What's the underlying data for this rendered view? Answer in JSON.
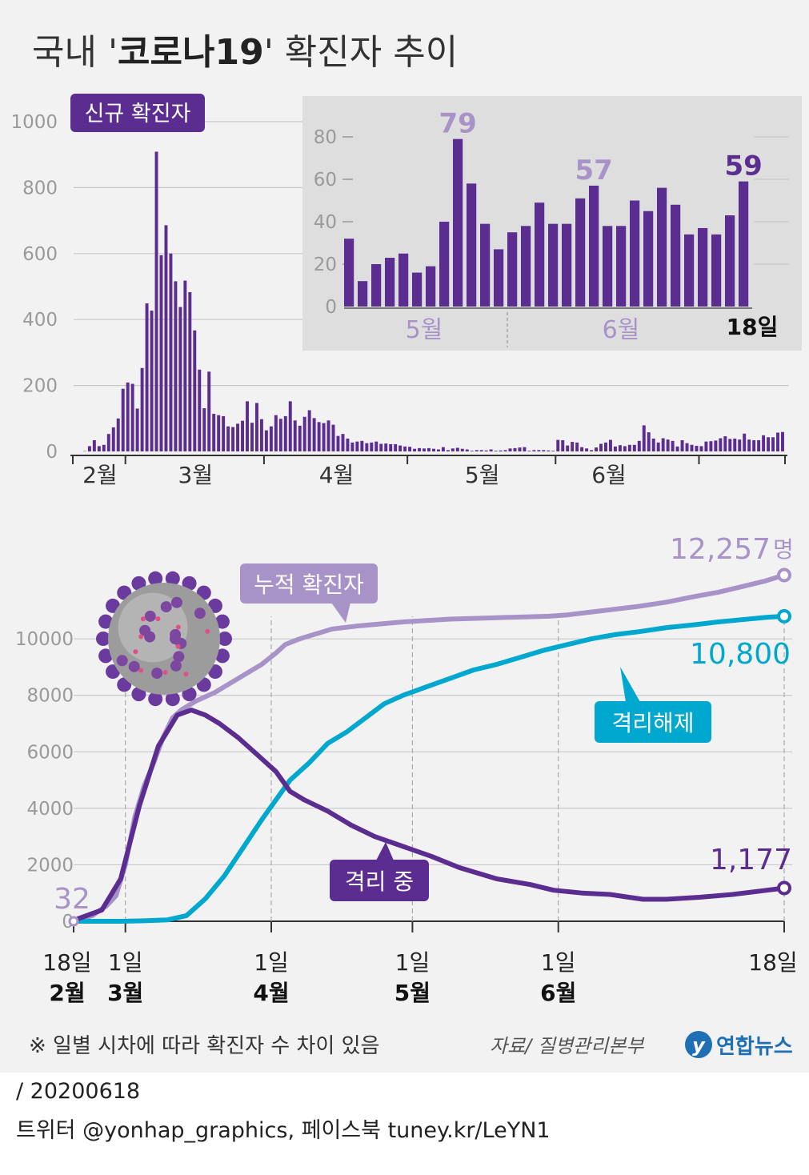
{
  "title": {
    "prefix": "국내 '",
    "bold": "코로나19",
    "suffix": "' 확진자 추이"
  },
  "colors": {
    "purple": "#5c2d91",
    "lavender": "#a893c8",
    "cyan": "#00a8cf",
    "grid": "#c9c9c9",
    "axis_text": "#9a9a9a",
    "inset_bg": "#dedede"
  },
  "chart_data": [
    {
      "type": "bar",
      "label": "신규 확진자",
      "ylim": [
        0,
        1000
      ],
      "yticks": [
        "0",
        "200",
        "400",
        "600",
        "800",
        "1000"
      ],
      "month_labels": [
        "2월",
        "3월",
        "4월",
        "5월",
        "6월"
      ],
      "values": [
        0,
        0,
        1,
        16,
        34,
        16,
        20,
        53,
        73,
        100,
        190,
        209,
        205,
        130,
        253,
        449,
        427,
        909,
        595,
        686,
        600,
        516,
        438,
        518,
        483,
        367,
        248,
        131,
        242,
        114,
        110,
        107,
        76,
        74,
        84,
        93,
        152,
        87,
        147,
        98,
        64,
        76,
        110,
        99,
        107,
        152,
        94,
        78,
        105,
        125,
        101,
        89,
        86,
        94,
        81,
        47,
        53,
        39,
        27,
        30,
        32,
        25,
        27,
        30,
        23,
        24,
        22,
        22,
        18,
        15,
        14,
        8,
        10,
        9,
        10,
        8,
        6,
        13,
        4,
        9,
        11,
        8,
        6,
        2,
        4,
        4,
        3,
        6,
        2,
        3,
        4,
        9,
        10,
        12,
        13,
        2,
        4,
        4,
        4,
        3,
        2,
        35,
        34,
        18,
        29,
        27,
        13,
        9,
        4,
        12,
        23,
        27,
        35,
        15,
        19,
        16,
        20,
        20,
        32,
        79,
        58,
        39,
        27,
        40,
        36,
        32,
        15,
        34,
        25,
        20,
        17,
        16,
        30,
        31,
        33,
        40,
        46,
        38,
        39,
        36,
        54,
        36,
        34,
        34,
        49,
        43,
        43,
        57,
        59
      ]
    },
    {
      "type": "bar",
      "label": "inset",
      "ylim": [
        0,
        80
      ],
      "yticks": [
        "0",
        "20",
        "40",
        "60",
        "80"
      ],
      "month_labels": [
        "5월",
        "6월"
      ],
      "end_label": "18일",
      "values": [
        32,
        12,
        20,
        23,
        25,
        16,
        19,
        40,
        79,
        58,
        39,
        27,
        35,
        38,
        49,
        39,
        39,
        51,
        57,
        38,
        38,
        50,
        45,
        56,
        48,
        34,
        37,
        34,
        43,
        59
      ],
      "annotations": [
        {
          "index": 8,
          "text": "79"
        },
        {
          "index": 18,
          "text": "57"
        },
        {
          "index": 29,
          "text": "59"
        }
      ]
    },
    {
      "type": "line",
      "ylim": [
        0,
        12000
      ],
      "yticks": [
        "0",
        "2000",
        "4000",
        "6000",
        "8000",
        "10000"
      ],
      "x_labels": [
        {
          "day": "18일",
          "month": "2월"
        },
        {
          "day": "1일",
          "month": "3월"
        },
        {
          "day": "1일",
          "month": "4월"
        },
        {
          "day": "1일",
          "month": "5월"
        },
        {
          "day": "1일",
          "month": "6월"
        },
        {
          "day": "18일",
          "month": ""
        }
      ],
      "series": [
        {
          "name": "누적 확진자",
          "color": "#a893c8",
          "start_label": "32",
          "end_label": "12,257",
          "unit": "명",
          "points": [
            [
              0,
              32
            ],
            [
              4,
              200
            ],
            [
              7,
              550
            ],
            [
              9,
              900
            ],
            [
              11,
              2000
            ],
            [
              13,
              3700
            ],
            [
              15,
              4800
            ],
            [
              17,
              5600
            ],
            [
              19,
              6500
            ],
            [
              21,
              7200
            ],
            [
              23,
              7500
            ],
            [
              26,
              7800
            ],
            [
              30,
              8100
            ],
            [
              35,
              8600
            ],
            [
              40,
              9100
            ],
            [
              43,
              9500
            ],
            [
              45,
              9800
            ],
            [
              48,
              10000
            ],
            [
              52,
              10200
            ],
            [
              55,
              10350
            ],
            [
              60,
              10450
            ],
            [
              70,
              10600
            ],
            [
              80,
              10700
            ],
            [
              90,
              10750
            ],
            [
              101,
              10800
            ],
            [
              105,
              10850
            ],
            [
              110,
              10950
            ],
            [
              115,
              11050
            ],
            [
              120,
              11150
            ],
            [
              126,
              11300
            ],
            [
              132,
              11500
            ],
            [
              137,
              11650
            ],
            [
              142,
              11850
            ],
            [
              147,
              12050
            ],
            [
              151,
              12257
            ]
          ]
        },
        {
          "name": "격리해제",
          "color": "#00a8cf",
          "end_label": "10,800",
          "points": [
            [
              0,
              0
            ],
            [
              10,
              0
            ],
            [
              15,
              16
            ],
            [
              20,
              50
            ],
            [
              24,
              200
            ],
            [
              28,
              800
            ],
            [
              32,
              1600
            ],
            [
              36,
              2600
            ],
            [
              40,
              3600
            ],
            [
              43,
              4300
            ],
            [
              46,
              5000
            ],
            [
              50,
              5600
            ],
            [
              54,
              6300
            ],
            [
              58,
              6700
            ],
            [
              62,
              7200
            ],
            [
              66,
              7700
            ],
            [
              70,
              8000
            ],
            [
              75,
              8300
            ],
            [
              80,
              8600
            ],
            [
              85,
              8900
            ],
            [
              90,
              9100
            ],
            [
              95,
              9350
            ],
            [
              100,
              9600
            ],
            [
              105,
              9800
            ],
            [
              110,
              10000
            ],
            [
              115,
              10150
            ],
            [
              120,
              10250
            ],
            [
              126,
              10400
            ],
            [
              132,
              10500
            ],
            [
              137,
              10600
            ],
            [
              142,
              10680
            ],
            [
              147,
              10760
            ],
            [
              151,
              10800
            ]
          ]
        },
        {
          "name": "격리 중",
          "color": "#5c2d91",
          "end_label": "1,177",
          "points": [
            [
              0,
              32
            ],
            [
              6,
              400
            ],
            [
              10,
              1500
            ],
            [
              14,
              4100
            ],
            [
              18,
              6200
            ],
            [
              22,
              7300
            ],
            [
              25,
              7480
            ],
            [
              28,
              7300
            ],
            [
              31,
              7000
            ],
            [
              35,
              6500
            ],
            [
              39,
              5900
            ],
            [
              43,
              5300
            ],
            [
              46,
              4600
            ],
            [
              49,
              4300
            ],
            [
              54,
              3900
            ],
            [
              59,
              3400
            ],
            [
              64,
              3000
            ],
            [
              70,
              2650
            ],
            [
              76,
              2300
            ],
            [
              82,
              1900
            ],
            [
              90,
              1500
            ],
            [
              97,
              1300
            ],
            [
              102,
              1100
            ],
            [
              108,
              1000
            ],
            [
              114,
              950
            ],
            [
              118,
              850
            ],
            [
              121,
              780
            ],
            [
              126,
              780
            ],
            [
              133,
              850
            ],
            [
              140,
              950
            ],
            [
              146,
              1070
            ],
            [
              151,
              1177
            ]
          ]
        }
      ]
    }
  ],
  "note": "※ 일별 시차에 따라 확진자 수 차이 있음",
  "source": "자료/ 질병관리본부",
  "logo": {
    "mark": "y",
    "text": "연합뉴스"
  },
  "footer": {
    "date": "/ 20200618",
    "links": "트위터 @yonhap_graphics, 페이스북 tuney.kr/LeYN1"
  }
}
